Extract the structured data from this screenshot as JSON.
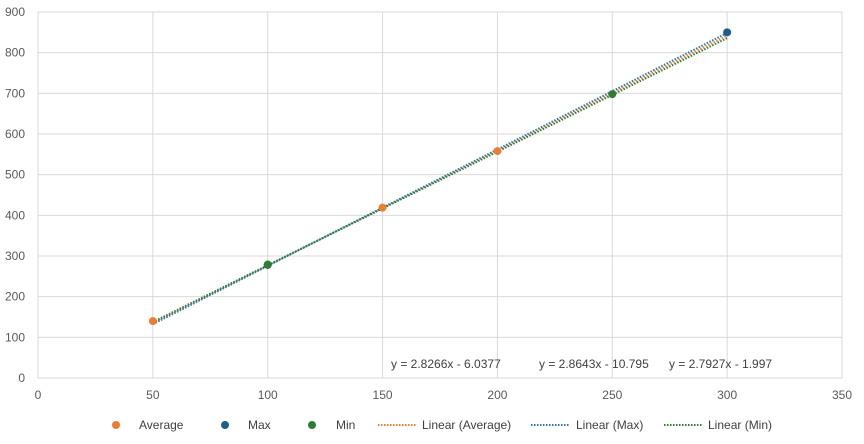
{
  "chart_data": {
    "type": "scatter",
    "xlim": [
      0,
      350
    ],
    "ylim": [
      0,
      900
    ],
    "x_ticks": [
      0,
      50,
      100,
      150,
      200,
      250,
      300,
      350
    ],
    "y_ticks": [
      0,
      100,
      200,
      300,
      400,
      500,
      600,
      700,
      800,
      900
    ],
    "grid": true,
    "legend_position": "bottom",
    "series": [
      {
        "name": "Average",
        "color": "#ED7D31",
        "points": [
          [
            50,
            140
          ],
          [
            150,
            419
          ],
          [
            200,
            558
          ]
        ]
      },
      {
        "name": "Max",
        "color": "#1F5C8B",
        "points": [
          [
            100,
            278
          ],
          [
            300,
            850
          ]
        ]
      },
      {
        "name": "Min",
        "color": "#2E7D32",
        "points": [
          [
            100,
            279
          ],
          [
            250,
            698
          ]
        ]
      }
    ],
    "trendlines": [
      {
        "name": "Linear (Average)",
        "color": "#ED7D31",
        "slope": 2.8266,
        "intercept": -6.0377,
        "x_range": [
          50,
          300
        ],
        "equation": "y = 2.8266x - 6.0377"
      },
      {
        "name": "Linear (Max)",
        "color": "#2E75B6",
        "slope": 2.8643,
        "intercept": -10.795,
        "x_range": [
          50,
          300
        ],
        "equation": "y = 2.8643x - 10.795"
      },
      {
        "name": "Linear (Min)",
        "color": "#2E7D32",
        "slope": 2.7927,
        "intercept": -1.997,
        "x_range": [
          50,
          300
        ],
        "equation": "y = 2.7927x - 1.997"
      }
    ]
  }
}
